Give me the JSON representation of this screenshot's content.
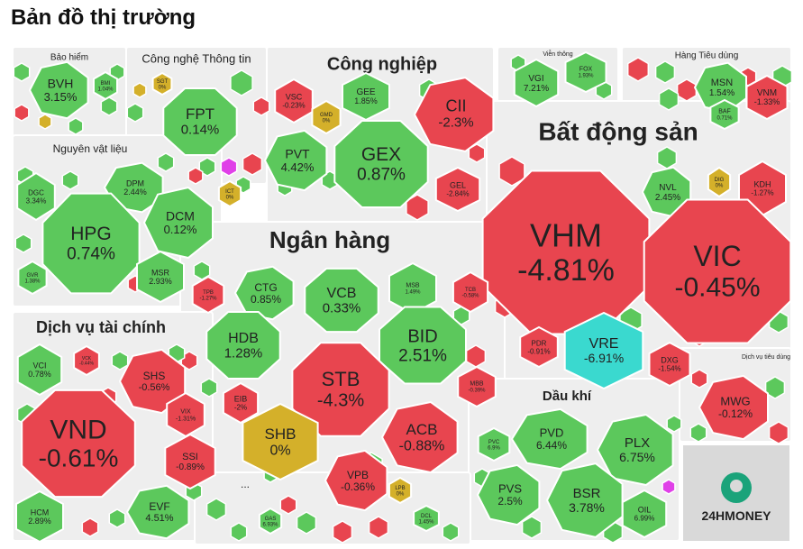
{
  "page_title": "Bản đồ thị trường",
  "colors": {
    "up": "#5cc85c",
    "down": "#e8454f",
    "flat": "#d4b02a",
    "ceiling": "#e040e8",
    "floor": "#3ad9cf",
    "bg": "#ffffff",
    "sector_bg": "#eeeeee"
  },
  "logo_text": "24HMONEY",
  "chart_data": {
    "type": "treemap",
    "title": "Bản đồ thị trường",
    "sectors": [
      {
        "name": "Bảo hiểm",
        "tiles": [
          {
            "symbol": "BVH",
            "change": "3.15%"
          },
          {
            "symbol": "BMI",
            "change": "1.04%"
          }
        ]
      },
      {
        "name": "Công nghệ Thông tin",
        "tiles": [
          {
            "symbol": "FPT",
            "change": "0.14%"
          },
          {
            "symbol": "SGT",
            "change": "0%"
          },
          {
            "symbol": "ICT",
            "change": "0%"
          }
        ]
      },
      {
        "name": "Công nghiệp",
        "tiles": [
          {
            "symbol": "VSC",
            "change": "-0.23%"
          },
          {
            "symbol": "GEE",
            "change": "1.85%"
          },
          {
            "symbol": "GMD",
            "change": "0%"
          },
          {
            "symbol": "CII",
            "change": "-2.3%"
          },
          {
            "symbol": "PVT",
            "change": "4.42%"
          },
          {
            "symbol": "GEX",
            "change": "0.87%"
          },
          {
            "symbol": "GEL",
            "change": "-2.84%"
          }
        ]
      },
      {
        "name": "Viễn thông",
        "tiles": [
          {
            "symbol": "VGI",
            "change": "7.21%"
          },
          {
            "symbol": "FOX",
            "change": "1.93%"
          }
        ]
      },
      {
        "name": "Hàng Tiêu dùng",
        "tiles": [
          {
            "symbol": "MSN",
            "change": "1.54%"
          },
          {
            "symbol": "VNM",
            "change": "-1.33%"
          },
          {
            "symbol": "BAF",
            "change": "0.71%"
          }
        ]
      },
      {
        "name": "Nguyên vật liệu",
        "tiles": [
          {
            "symbol": "DGC",
            "change": "3.34%"
          },
          {
            "symbol": "DPM",
            "change": "2.44%"
          },
          {
            "symbol": "HPG",
            "change": "0.74%"
          },
          {
            "symbol": "DCM",
            "change": "0.12%"
          },
          {
            "symbol": "GVR",
            "change": "1.38%"
          },
          {
            "symbol": "MSR",
            "change": "2.93%"
          }
        ]
      },
      {
        "name": "Bất động sản",
        "tiles": [
          {
            "symbol": "VHM",
            "change": "-4.81%"
          },
          {
            "symbol": "NVL",
            "change": "2.45%"
          },
          {
            "symbol": "DIG",
            "change": "0%"
          },
          {
            "symbol": "KDH",
            "change": "-1.27%"
          },
          {
            "symbol": "VIC",
            "change": "-0.45%"
          },
          {
            "symbol": "PDR",
            "change": "-0.91%"
          },
          {
            "symbol": "VRE",
            "change": "-6.91%"
          },
          {
            "symbol": "DXG",
            "change": "-1.54%"
          }
        ]
      },
      {
        "name": "Ngân hàng",
        "tiles": [
          {
            "symbol": "TPB",
            "change": "-1.27%"
          },
          {
            "symbol": "CTG",
            "change": "0.85%"
          },
          {
            "symbol": "VCB",
            "change": "0.33%"
          },
          {
            "symbol": "MSB",
            "change": "1.49%"
          },
          {
            "symbol": "TCB",
            "change": "-0.58%"
          },
          {
            "symbol": "HDB",
            "change": "1.28%"
          },
          {
            "symbol": "BID",
            "change": "2.51%"
          },
          {
            "symbol": "STB",
            "change": "-4.3%"
          },
          {
            "symbol": "EIB",
            "change": "-2%"
          },
          {
            "symbol": "MBB",
            "change": "-0.39%"
          },
          {
            "symbol": "SHB",
            "change": "0%"
          },
          {
            "symbol": "ACB",
            "change": "-0.88%"
          },
          {
            "symbol": "VPB",
            "change": "-0.36%"
          },
          {
            "symbol": "LPB",
            "change": "0%"
          }
        ]
      },
      {
        "name": "Dịch vụ tài chính",
        "tiles": [
          {
            "symbol": "VCI",
            "change": "0.78%"
          },
          {
            "symbol": "VCK",
            "change": "-0.44%"
          },
          {
            "symbol": "SHS",
            "change": "-0.56%"
          },
          {
            "symbol": "VIX",
            "change": "-1.31%"
          },
          {
            "symbol": "VND",
            "change": "-0.61%"
          },
          {
            "symbol": "SSI",
            "change": "-0.89%"
          },
          {
            "symbol": "HCM",
            "change": "2.89%"
          },
          {
            "symbol": "EVF",
            "change": "4.51%"
          }
        ]
      },
      {
        "name": "Dịch vụ tiêu dùng",
        "tiles": [
          {
            "symbol": "MWG",
            "change": "-0.12%"
          }
        ]
      },
      {
        "name": "Dầu khí",
        "tiles": [
          {
            "symbol": "PVC",
            "change": "6.9%"
          },
          {
            "symbol": "PVD",
            "change": "6.44%"
          },
          {
            "symbol": "PLX",
            "change": "6.75%"
          },
          {
            "symbol": "PVS",
            "change": "2.5%"
          },
          {
            "symbol": "BSR",
            "change": "3.78%"
          },
          {
            "symbol": "OIL",
            "change": "6.99%"
          }
        ]
      },
      {
        "name": "...",
        "tiles": [
          {
            "symbol": "GAS",
            "change": "6.93%"
          },
          {
            "symbol": "DCL",
            "change": "1.45%"
          }
        ]
      }
    ]
  }
}
